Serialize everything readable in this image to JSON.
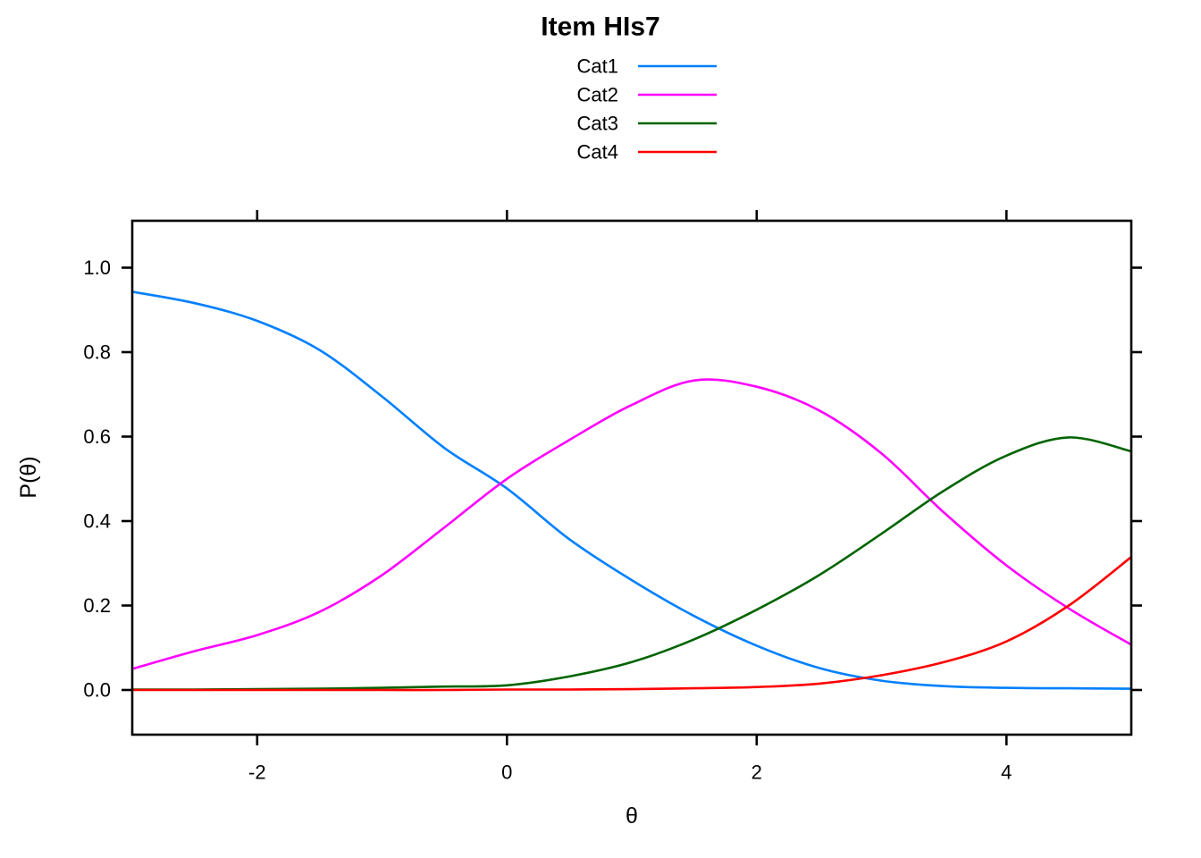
{
  "title": "Item HIs7",
  "legend": {
    "items": [
      {
        "label": "Cat1",
        "color": "#0080FF"
      },
      {
        "label": "Cat2",
        "color": "#FF00FF"
      },
      {
        "label": "Cat3",
        "color": "#006400"
      },
      {
        "label": "Cat4",
        "color": "#FF0000"
      }
    ]
  },
  "chart_data": {
    "type": "line",
    "title": "Item HIs7",
    "xlabel": "θ",
    "ylabel": "P(θ)",
    "xlim": [
      -3,
      5
    ],
    "ylim": [
      -0.107,
      1.103
    ],
    "x_ticks": [
      -2,
      0,
      2,
      4
    ],
    "x_tick_labels": [
      "-2",
      "0",
      "2",
      "4"
    ],
    "y_ticks": [
      0.0,
      0.2,
      0.4,
      0.6,
      0.8,
      1.0
    ],
    "y_tick_labels": [
      "0.0",
      "0.2",
      "0.4",
      "0.6",
      "0.8",
      "1.0"
    ],
    "grid": false,
    "legend_position": "top-center",
    "x": [
      -3,
      -2.5,
      -2,
      -1.5,
      -1,
      -0.5,
      0,
      0.5,
      1,
      1.5,
      2,
      2.5,
      3,
      3.5,
      4,
      4.5,
      5
    ],
    "series": [
      {
        "name": "Cat1",
        "color": "#0080FF",
        "values": [
          0.943,
          0.916,
          0.874,
          0.805,
          0.695,
          0.573,
          0.477,
          0.357,
          0.26,
          0.175,
          0.105,
          0.052,
          0.022,
          0.009,
          0.005,
          0.004,
          0.003
        ]
      },
      {
        "name": "Cat2",
        "color": "#FF00FF",
        "values": [
          0.05,
          0.092,
          0.13,
          0.185,
          0.272,
          0.385,
          0.5,
          0.592,
          0.675,
          0.733,
          0.718,
          0.662,
          0.56,
          0.42,
          0.295,
          0.193,
          0.107
        ]
      },
      {
        "name": "Cat3",
        "color": "#006400",
        "values": [
          0.001,
          0.001,
          0.002,
          0.003,
          0.005,
          0.008,
          0.011,
          0.032,
          0.066,
          0.12,
          0.19,
          0.272,
          0.37,
          0.472,
          0.555,
          0.598,
          0.565
        ]
      },
      {
        "name": "Cat4",
        "color": "#FF0000",
        "values": [
          0.0,
          0.0,
          0.0,
          0.0,
          0.0,
          0.0,
          0.001,
          0.001,
          0.002,
          0.004,
          0.007,
          0.015,
          0.035,
          0.066,
          0.115,
          0.2,
          0.315
        ]
      }
    ]
  }
}
